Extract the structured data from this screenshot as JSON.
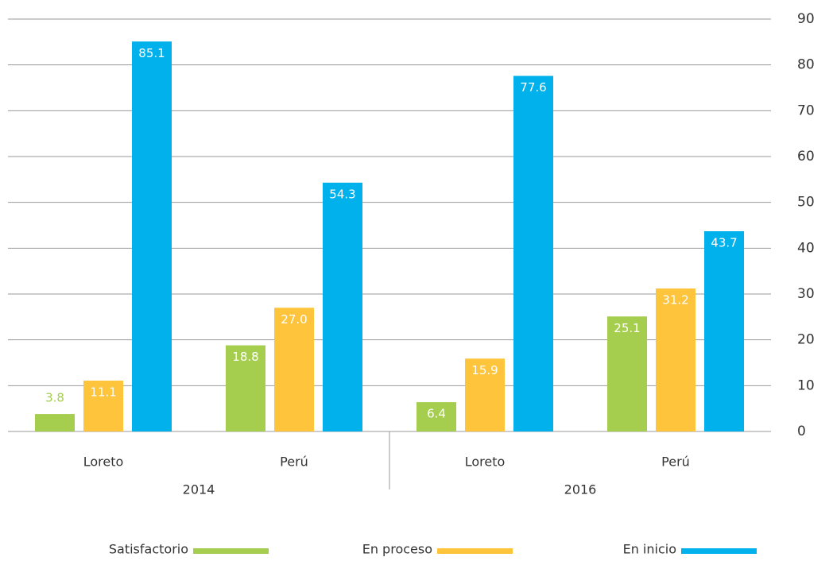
{
  "chart_data": {
    "type": "bar",
    "categories": [
      "Loreto",
      "Perú",
      "Loreto",
      "Perú"
    ],
    "groups": [
      "2014",
      "2016"
    ],
    "series": [
      {
        "name": "Satisfactorio",
        "color": "#a5cd4e",
        "values": [
          3.8,
          18.8,
          6.4,
          25.1
        ],
        "value_labels": [
          "3.8",
          "18.8",
          "6.4",
          "25.1"
        ]
      },
      {
        "name": "En proceso",
        "color": "#fdc43c",
        "values": [
          11.1,
          27,
          15.9,
          31.2
        ],
        "value_labels": [
          "11.1",
          "27.0",
          "15.9",
          "31.2"
        ]
      },
      {
        "name": "En inicio",
        "color": "#00b1eb",
        "values": [
          85.1,
          54.3,
          77.6,
          43.7
        ],
        "value_labels": [
          "85.1",
          "54.3",
          "77.6",
          "43.7"
        ]
      }
    ],
    "ylim": [
      0,
      90
    ],
    "yticks": [
      0,
      10,
      20,
      30,
      40,
      50,
      60,
      70,
      80,
      90
    ],
    "grid": true,
    "y_axis_side": "right",
    "legend": "bottom"
  }
}
